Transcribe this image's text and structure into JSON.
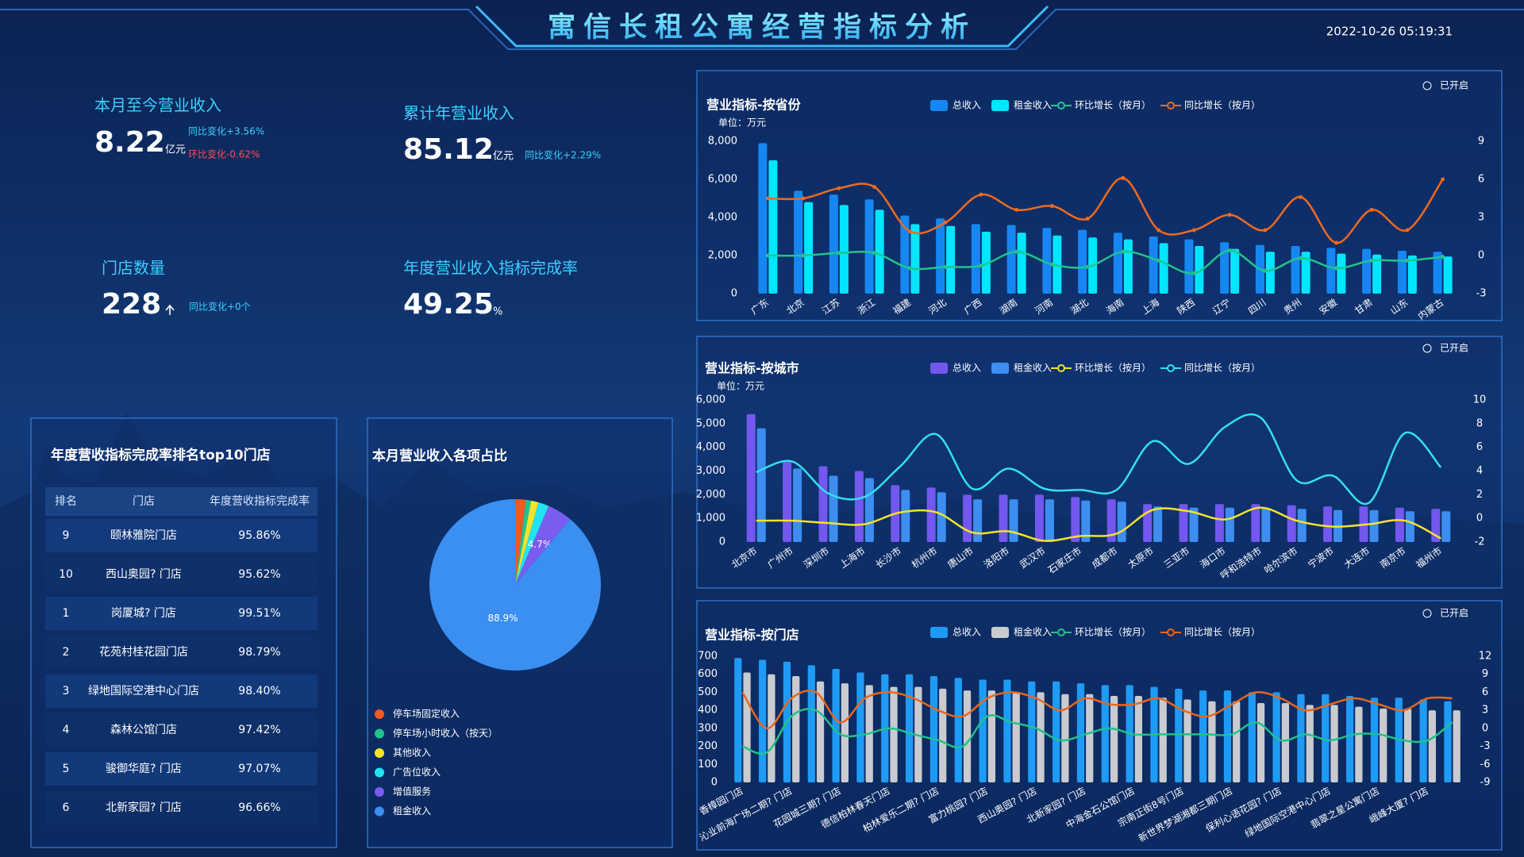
{
  "header": {
    "title": "寓信长租公寓经营指标分析",
    "datetime": "2022-10-26 05:19:31"
  },
  "kpis": [
    {
      "label": "本月至今营业收入",
      "value": "8.22",
      "unit": "亿元",
      "changes": [
        "同比变化+3.56%",
        "环比变化-0.62%"
      ]
    },
    {
      "label": "累计年营业收入",
      "value": "85.12",
      "unit": "亿元",
      "changes": [
        "同比变化+2.29%"
      ]
    },
    {
      "label": "门店数量",
      "value": "228",
      "changes": [
        "同比变化+0个"
      ]
    },
    {
      "label": "年度营业收入指标完成率",
      "value": "49.25",
      "unit": "%"
    }
  ],
  "table": {
    "title": "年度营收指标完成率排名top10门店",
    "columns": [
      "排名",
      "门店",
      "年度营收指标完成率"
    ],
    "rows": [
      [
        "9",
        "颐林雅院门店",
        "95.86%"
      ],
      [
        "10",
        "西山奥园? 门店",
        "95.62%"
      ],
      [
        "1",
        "岗厦城? 门店",
        "99.51%"
      ],
      [
        "2",
        "花苑村桂花园门店",
        "98.79%"
      ],
      [
        "3",
        "绿地国际空港中心门店",
        "98.40%"
      ],
      [
        "4",
        "森林公馆门店",
        "97.42%"
      ],
      [
        "5",
        "骏御华庭? 门店",
        "97.07%"
      ],
      [
        "6",
        "北新家园? 门店",
        "96.66%"
      ]
    ]
  },
  "chart_data": [
    {
      "type": "combo",
      "title": "营业指标-按省份",
      "unit_label": "单位：万元",
      "toggle": "已开启",
      "categories": [
        "广东",
        "北京",
        "江苏",
        "浙江",
        "福建",
        "河北",
        "广西",
        "湖南",
        "河南",
        "湖北",
        "海南",
        "上海",
        "陕西",
        "辽宁",
        "四川",
        "贵州",
        "安徽",
        "甘肃",
        "山东",
        "内蒙古"
      ],
      "series": [
        {
          "name": "总收入",
          "type": "bar",
          "color": "#1687f2",
          "values": [
            7900,
            5400,
            5200,
            4950,
            4100,
            3950,
            3650,
            3600,
            3450,
            3350,
            3200,
            3000,
            2850,
            2700,
            2550,
            2500,
            2400,
            2350,
            2250,
            2200
          ]
        },
        {
          "name": "租金收入",
          "type": "bar",
          "color": "#00e6ff",
          "values": [
            7000,
            4800,
            4650,
            4400,
            3650,
            3550,
            3250,
            3200,
            3050,
            2950,
            2850,
            2650,
            2500,
            2350,
            2200,
            2200,
            2100,
            2050,
            2000,
            1950
          ]
        },
        {
          "name": "环比增长（按月）",
          "type": "line",
          "axis": "y2",
          "color": "#21c48d",
          "values": [
            0,
            0,
            0.2,
            0.2,
            -1,
            -0.9,
            -0.8,
            0.3,
            -0.7,
            -0.9,
            0.3,
            -0.4,
            -1.4,
            0.4,
            -1.2,
            -0.2,
            -1,
            -0.4,
            -0.4,
            -0.1
          ]
        },
        {
          "name": "同比增长（按月）",
          "type": "line",
          "axis": "y2",
          "color": "#f06a1d",
          "values": [
            4.5,
            4.5,
            5.3,
            5.4,
            1.9,
            2.6,
            4.8,
            3.6,
            3.9,
            2.9,
            6.1,
            2,
            2,
            3.2,
            2,
            4.6,
            1,
            3.6,
            2,
            6
          ]
        }
      ],
      "ylim": [
        0,
        8000
      ],
      "yticks": [
        0,
        {
          "value": 2000,
          "label": "2,000"
        },
        {
          "value": 4000,
          "label": "4,000"
        },
        {
          "value": 6000,
          "label": "6,000"
        },
        {
          "value": 8000,
          "label": "8,000"
        }
      ],
      "y2lim": [
        -3,
        9
      ],
      "y2ticks": [
        -3,
        0,
        3,
        6,
        9
      ]
    },
    {
      "type": "combo",
      "title": "营业指标-按城市",
      "unit_label": "单位：万元",
      "toggle": "已开启",
      "categories": [
        "北京市",
        "广州市",
        "深圳市",
        "上海市",
        "长沙市",
        "杭州市",
        "唐山市",
        "洛阳市",
        "武汉市",
        "石家庄市",
        "成都市",
        "太原市",
        "三亚市",
        "海口市",
        "呼和浩特市",
        "哈尔滨市",
        "宁波市",
        "大连市",
        "南京市",
        "福州市"
      ],
      "series": [
        {
          "name": "总收入",
          "type": "bar",
          "color": "#7357ee",
          "values": [
            5400,
            3400,
            3200,
            3000,
            2400,
            2300,
            2000,
            2000,
            2000,
            1900,
            1800,
            1600,
            1600,
            1600,
            1600,
            1550,
            1500,
            1500,
            1450,
            1400
          ]
        },
        {
          "name": "租金收入",
          "type": "bar",
          "color": "#3d8ef0",
          "values": [
            4800,
            3100,
            2800,
            2700,
            2200,
            2100,
            1800,
            1800,
            1800,
            1750,
            1700,
            1500,
            1450,
            1450,
            1450,
            1400,
            1350,
            1350,
            1300,
            1300
          ]
        },
        {
          "name": "环比增长（按月）",
          "type": "line",
          "axis": "y2",
          "color": "#f2e32a",
          "values": [
            -0.2,
            -0.2,
            -0.4,
            -0.5,
            0.5,
            0.5,
            -1.2,
            -1.1,
            -1.9,
            -1.5,
            -1.3,
            0.7,
            0.6,
            -0.1,
            0.9,
            -0.2,
            -0.7,
            -0.5,
            -0.2,
            -1.7
          ]
        },
        {
          "name": "同比增长（按月）",
          "type": "line",
          "axis": "y2",
          "color": "#33e0f0",
          "values": [
            3.9,
            4.8,
            2.1,
            1.8,
            4.4,
            7.1,
            2.5,
            4.2,
            2.5,
            2.4,
            2.4,
            6.5,
            4.6,
            7.7,
            8.5,
            3.2,
            3.6,
            1.3,
            7.2,
            4.3
          ]
        }
      ],
      "ylim": [
        0,
        6000
      ],
      "yticks": [
        0,
        {
          "value": 1000,
          "label": "1,000"
        },
        {
          "value": 2000,
          "label": "2,000"
        },
        {
          "value": 3000,
          "label": "3,000"
        },
        {
          "value": 4000,
          "label": "4,000"
        },
        {
          "value": 5000,
          "label": "5,000"
        },
        {
          "value": 6000,
          "label": "6,000"
        }
      ],
      "y2lim": [
        -2,
        10
      ],
      "y2ticks": [
        -2,
        0,
        2,
        4,
        6,
        8,
        10
      ]
    },
    {
      "type": "combo",
      "title": "营业指标-按门店",
      "toggle": "已开启",
      "categories": [
        "香樟园门店",
        null,
        "沁业前海广场二期? 门店",
        null,
        "花园城三期? 门店",
        null,
        "德信柏林春天门店",
        null,
        "柏林爱乐二期? 门店",
        null,
        "富力桃园? 门店",
        null,
        "西山奥园? 门店",
        null,
        "北新家园? 门店",
        null,
        "中海金石公馆门店",
        null,
        "宗南正街8号门店",
        null,
        "新世界梦湖湘都三期门店",
        null,
        "保利心语花园? 门店",
        null,
        "绿地国际空港中心门店",
        null,
        "翡翠之星公寓门店",
        null,
        "峨峰大厦? 门店",
        null
      ],
      "series": [
        {
          "name": "总收入",
          "type": "bar",
          "color": "#1e9bf5",
          "values": [
            690,
            680,
            670,
            650,
            630,
            610,
            600,
            600,
            590,
            580,
            570,
            570,
            560,
            560,
            550,
            540,
            540,
            530,
            520,
            510,
            510,
            500,
            500,
            490,
            490,
            480,
            470,
            470,
            460,
            450
          ]
        },
        {
          "name": "租金收入",
          "type": "bar",
          "color": "#c9cbd0",
          "values": [
            610,
            600,
            590,
            560,
            550,
            540,
            530,
            530,
            520,
            510,
            510,
            500,
            500,
            490,
            490,
            480,
            480,
            470,
            460,
            450,
            450,
            440,
            440,
            430,
            430,
            420,
            410,
            410,
            400,
            400
          ]
        },
        {
          "name": "环比增长（按月）",
          "type": "line",
          "axis": "y2",
          "color": "#1fc28a",
          "values": [
            -3,
            -4,
            2,
            3,
            -1,
            -1,
            0,
            -1,
            -2,
            -3,
            2,
            1,
            0,
            -2,
            -1,
            0,
            -1,
            -1,
            -1,
            -1,
            -1,
            1,
            -2,
            -1,
            -2,
            -1,
            -1,
            -2,
            -2,
            1
          ]
        },
        {
          "name": "同比增长（按月）",
          "type": "line",
          "axis": "y2",
          "color": "#e8671c",
          "values": [
            6,
            0,
            5,
            6,
            1,
            5,
            6,
            5,
            3,
            2,
            5,
            6,
            5,
            3,
            5,
            4,
            4,
            5,
            3,
            2,
            4,
            6,
            5,
            3,
            4,
            5,
            4,
            3,
            5,
            5
          ]
        }
      ],
      "ylim": [
        0,
        700
      ],
      "yticks": [
        0,
        100,
        200,
        300,
        400,
        500,
        600,
        700
      ],
      "y2lim": [
        -9,
        12
      ],
      "y2ticks": [
        -9,
        -6,
        -3,
        0,
        3,
        6,
        9,
        12
      ]
    },
    {
      "type": "pie",
      "title": "本月营业收入各项占比",
      "categories": [
        "停车场固定收入",
        "停车场小时收入（按天）",
        "其他收入",
        "广告位收入",
        "增值服务",
        "租金收入"
      ],
      "colors": [
        "#f05a23",
        "#22c38e",
        "#f4e32a",
        "#22e3f0",
        "#7a5cf0",
        "#3a8ff0"
      ],
      "values": [
        2.0,
        1.0,
        1.4,
        2.0,
        4.7,
        88.9
      ],
      "value_labels": [
        null,
        null,
        null,
        null,
        "4.7%",
        "88.9%"
      ]
    }
  ]
}
